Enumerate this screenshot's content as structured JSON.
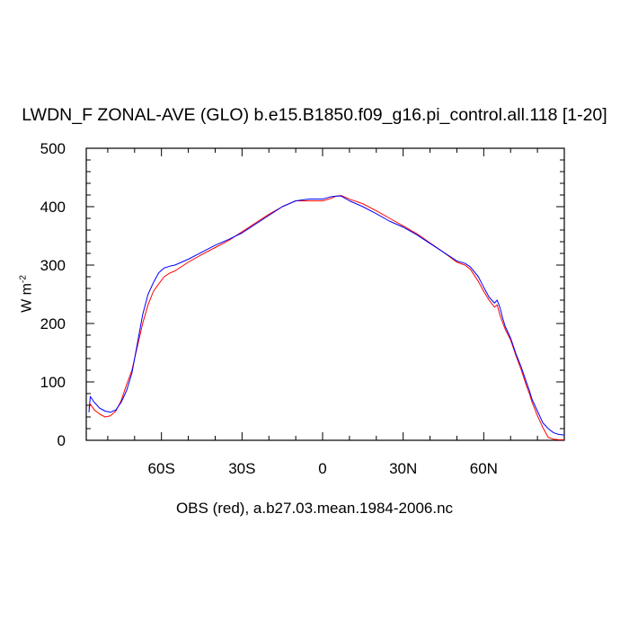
{
  "chart_data": {
    "type": "line",
    "title": "LWDN_F ZONAL-AVE (GLO) b.e15.B1850.f09_g16.pi_control.all.118 [1-20]",
    "xlabel": "OBS (red), a.b27.03.mean.1984-2006.nc",
    "ylabel": "W m",
    "ylabel_superscript": "-2",
    "xlim": [
      -88,
      90
    ],
    "ylim": [
      0,
      500
    ],
    "x_ticks": [
      {
        "value": -60,
        "label": "60S"
      },
      {
        "value": -30,
        "label": "30S"
      },
      {
        "value": 0,
        "label": "0"
      },
      {
        "value": 30,
        "label": "30N"
      },
      {
        "value": 60,
        "label": "60N"
      }
    ],
    "y_ticks": [
      {
        "value": 0,
        "label": "0"
      },
      {
        "value": 100,
        "label": "100"
      },
      {
        "value": 200,
        "label": "200"
      },
      {
        "value": 300,
        "label": "300"
      },
      {
        "value": 400,
        "label": "400"
      },
      {
        "value": 500,
        "label": "500"
      }
    ],
    "grid": false,
    "series": [
      {
        "color": "#0000ff",
        "x": [
          -87,
          -86.5,
          -85,
          -83,
          -81,
          -79,
          -77,
          -75,
          -73,
          -71,
          -69,
          -67,
          -65,
          -63,
          -61,
          -59,
          -57,
          -55,
          -50,
          -45,
          -40,
          -35,
          -30,
          -25,
          -20,
          -15,
          -10,
          -5,
          0,
          3,
          5,
          7,
          10,
          15,
          20,
          25,
          30,
          35,
          40,
          45,
          50,
          53,
          55,
          58,
          60,
          62,
          64,
          65,
          66,
          67,
          68,
          70,
          72,
          74,
          76,
          77,
          78,
          80,
          82,
          84,
          86,
          88,
          90
        ],
        "y": [
          48,
          75,
          65,
          55,
          50,
          48,
          52,
          65,
          85,
          115,
          165,
          215,
          250,
          270,
          287,
          295,
          298,
          300,
          310,
          322,
          334,
          344,
          355,
          370,
          385,
          400,
          410,
          413,
          413,
          417,
          418,
          418,
          410,
          400,
          388,
          375,
          365,
          352,
          337,
          322,
          307,
          303,
          297,
          280,
          262,
          245,
          235,
          240,
          228,
          210,
          195,
          175,
          148,
          125,
          98,
          85,
          70,
          50,
          30,
          20,
          13,
          10,
          9
        ]
      },
      {
        "color": "#ff0000",
        "x": [
          -87,
          -86.5,
          -85,
          -83,
          -81,
          -79,
          -77,
          -75,
          -73,
          -71,
          -69,
          -67,
          -65,
          -63,
          -61,
          -59,
          -57,
          -55,
          -50,
          -45,
          -40,
          -35,
          -30,
          -25,
          -20,
          -15,
          -10,
          -5,
          0,
          3,
          5,
          7,
          10,
          15,
          20,
          25,
          30,
          35,
          40,
          45,
          50,
          53,
          55,
          58,
          60,
          62,
          64,
          65,
          66,
          67,
          68,
          70,
          72,
          74,
          76,
          77,
          78,
          80,
          82,
          84,
          86,
          88,
          90
        ],
        "y": [
          55,
          62,
          52,
          45,
          40,
          42,
          50,
          68,
          95,
          120,
          160,
          200,
          232,
          255,
          268,
          280,
          286,
          290,
          305,
          318,
          330,
          342,
          357,
          372,
          387,
          400,
          410,
          410,
          410,
          414,
          418,
          419,
          413,
          405,
          393,
          380,
          367,
          354,
          338,
          322,
          305,
          300,
          293,
          272,
          255,
          240,
          228,
          232,
          215,
          202,
          190,
          172,
          145,
          120,
          92,
          80,
          65,
          42,
          22,
          5,
          2,
          1,
          1
        ]
      }
    ]
  }
}
